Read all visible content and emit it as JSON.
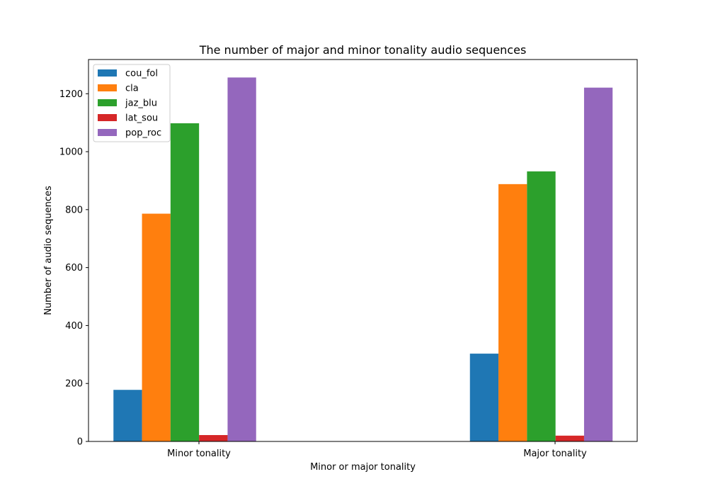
{
  "chart_data": {
    "type": "bar",
    "title": "The number of major and minor tonality audio sequences",
    "xlabel": "Minor or major tonality",
    "ylabel": "Number of audio sequences",
    "categories": [
      "Minor tonality",
      "Major tonality"
    ],
    "series": [
      {
        "name": "cou_fol",
        "color": "#1f77b4",
        "values": [
          178,
          303
        ]
      },
      {
        "name": "cla",
        "color": "#ff7f0e",
        "values": [
          786,
          888
        ]
      },
      {
        "name": "jaz_blu",
        "color": "#2ca02c",
        "values": [
          1098,
          932
        ]
      },
      {
        "name": "lat_sou",
        "color": "#d62728",
        "values": [
          22,
          20
        ]
      },
      {
        "name": "pop_roc",
        "color": "#9467bd",
        "values": [
          1256,
          1221
        ]
      }
    ],
    "ylim": [
      0,
      1318
    ],
    "yticks": [
      0,
      200,
      400,
      600,
      800,
      1000,
      1200
    ],
    "legend_position": "upper-left",
    "grid": false
  }
}
